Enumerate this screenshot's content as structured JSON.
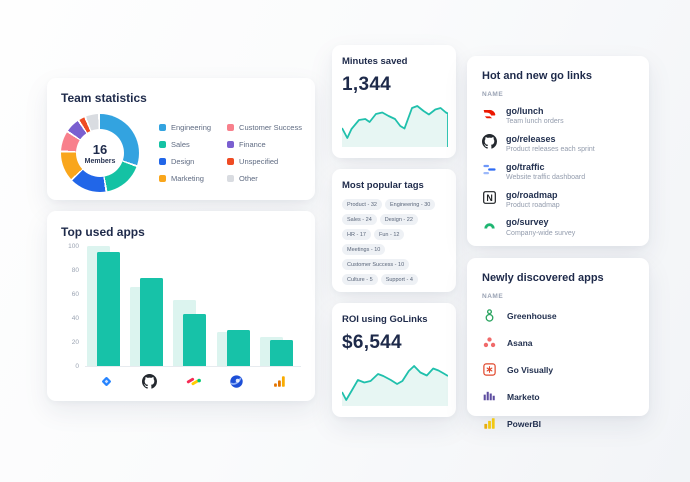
{
  "colors": {
    "accent_teal": "#17C2A8",
    "navy_text": "#1E2A4A"
  },
  "cards": {
    "team_statistics": {
      "title": "Team statistics",
      "center_value": "16",
      "center_label": "Members",
      "legend": [
        {
          "label": "Engineering",
          "color": "#33A3E0"
        },
        {
          "label": "Sales",
          "color": "#14C2A4"
        },
        {
          "label": "Design",
          "color": "#2166E8"
        },
        {
          "label": "Marketing",
          "color": "#F9A61C"
        },
        {
          "label": "Customer Success",
          "color": "#F8808C"
        },
        {
          "label": "Finance",
          "color": "#7A5FD0"
        },
        {
          "label": "Unspecified",
          "color": "#EF4B23"
        },
        {
          "label": "Other",
          "color": "#D9DCE1"
        }
      ]
    },
    "top_used_apps": {
      "title": "Top used apps"
    },
    "minutes_saved": {
      "title": "Minutes saved",
      "value": "1,344"
    },
    "most_popular_tags": {
      "title": "Most popular tags",
      "tags": [
        "Product - 32",
        "Engineering - 30",
        "Sales - 24",
        "Design - 22",
        "HR - 17",
        "Fun - 12",
        "Meetings - 10",
        "Customer Success - 10",
        "Culture - 5",
        "Support - 4"
      ]
    },
    "roi": {
      "title": "ROI using GoLinks",
      "value": "$6,544"
    },
    "hot_links": {
      "title": "Hot and new go links",
      "column_header": "NAME",
      "items": [
        {
          "icon": "doordash-icon",
          "name": "go/lunch",
          "description": "Team lunch orders"
        },
        {
          "icon": "github-icon",
          "name": "go/releases",
          "description": "Product releases each sprint"
        },
        {
          "icon": "traffic-bars-icon",
          "name": "go/traffic",
          "description": "Website traffic dashboard"
        },
        {
          "icon": "notion-icon",
          "name": "go/roadmap",
          "description": "Product roadmap"
        },
        {
          "icon": "survey-arch-icon",
          "name": "go/survey",
          "description": "Company-wide survey"
        }
      ]
    },
    "new_apps": {
      "title": "Newly discovered apps",
      "column_header": "NAME",
      "items": [
        {
          "icon": "greenhouse-icon",
          "name": "Greenhouse"
        },
        {
          "icon": "asana-icon",
          "name": "Asana"
        },
        {
          "icon": "go-visually-icon",
          "name": "Go Visually"
        },
        {
          "icon": "marketo-icon",
          "name": "Marketo"
        },
        {
          "icon": "powerbi-icon",
          "name": "PowerBI"
        }
      ]
    }
  },
  "chart_data": [
    {
      "type": "pie",
      "title": "Team statistics",
      "donut": true,
      "center_value": "16",
      "center_label": "Members",
      "segments": [
        {
          "label": "Engineering",
          "color": "#33A3E0",
          "start_deg": 0,
          "end_deg": 108
        },
        {
          "label": "Sales",
          "color": "#14C2A4",
          "start_deg": 111,
          "end_deg": 169
        },
        {
          "label": "Design",
          "color": "#2166E8",
          "start_deg": 172,
          "end_deg": 225
        },
        {
          "label": "Marketing",
          "color": "#F9A61C",
          "start_deg": 228,
          "end_deg": 271
        },
        {
          "label": "Customer Success",
          "color": "#F8808C",
          "start_deg": 274,
          "end_deg": 302
        },
        {
          "label": "Finance",
          "color": "#7A5FD0",
          "start_deg": 305,
          "end_deg": 325
        },
        {
          "label": "Unspecified",
          "color": "#EF4B23",
          "start_deg": 328,
          "end_deg": 336
        },
        {
          "label": "Other",
          "color": "#D9DCE1",
          "start_deg": 339,
          "end_deg": 357
        }
      ]
    },
    {
      "type": "bar",
      "title": "Top used apps",
      "categories": [
        "jira",
        "github",
        "monday",
        "planet",
        "google-analytics"
      ],
      "series": [
        {
          "name": "light",
          "color": "#DCF4EF",
          "values": [
            100,
            66,
            55,
            28,
            24
          ]
        },
        {
          "name": "dark",
          "color": "#17C2A8",
          "values": [
            95,
            73,
            43,
            30,
            22
          ]
        }
      ],
      "y_ticks": [
        0,
        20,
        40,
        60,
        80,
        100
      ],
      "ylim": [
        0,
        105
      ],
      "grid": false,
      "legend_position": "none"
    },
    {
      "type": "area",
      "title": "Minutes saved",
      "value": "1,344",
      "stroke": "#20C0AC",
      "fill": "#E7F6F3",
      "right_edge_drop": true,
      "points": [
        [
          0,
          62
        ],
        [
          5,
          82
        ],
        [
          9,
          64
        ],
        [
          16,
          46
        ],
        [
          22,
          44
        ],
        [
          26,
          50
        ],
        [
          32,
          34
        ],
        [
          38,
          31
        ],
        [
          44,
          38
        ],
        [
          50,
          44
        ],
        [
          55,
          58
        ],
        [
          59,
          63
        ],
        [
          66,
          22
        ],
        [
          71,
          18
        ],
        [
          77,
          28
        ],
        [
          82,
          35
        ],
        [
          88,
          25
        ],
        [
          93,
          22
        ],
        [
          98,
          31
        ],
        [
          100,
          33
        ]
      ]
    },
    {
      "type": "area",
      "title": "ROI using GoLinks",
      "value": "$6,544",
      "stroke": "#20C0AC",
      "fill": "#E7F6F3",
      "right_edge_drop": false,
      "points": [
        [
          0,
          72
        ],
        [
          4,
          88
        ],
        [
          9,
          70
        ],
        [
          15,
          48
        ],
        [
          21,
          53
        ],
        [
          27,
          50
        ],
        [
          34,
          36
        ],
        [
          39,
          40
        ],
        [
          46,
          48
        ],
        [
          52,
          56
        ],
        [
          57,
          50
        ],
        [
          63,
          30
        ],
        [
          68,
          20
        ],
        [
          74,
          33
        ],
        [
          80,
          39
        ],
        [
          86,
          25
        ],
        [
          91,
          29
        ],
        [
          96,
          35
        ],
        [
          100,
          40
        ]
      ]
    }
  ]
}
